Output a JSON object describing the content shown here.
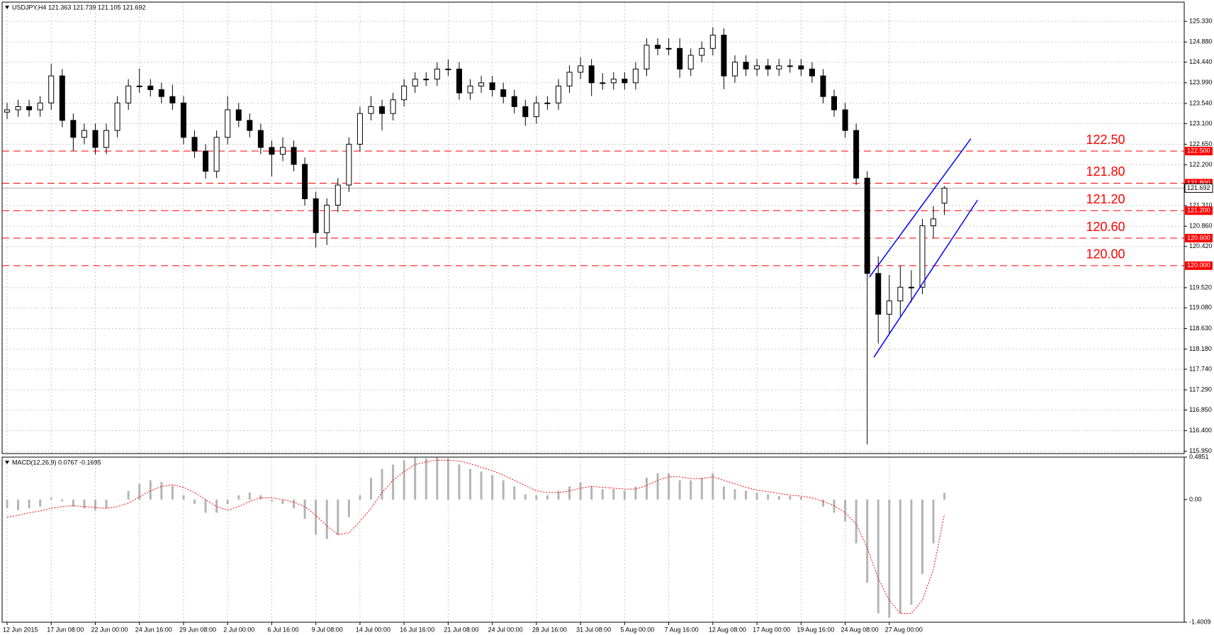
{
  "chart_data": [
    {
      "type": "candlestick",
      "title": "USDJPY,H4  121.363 121.739 121.105 121.692",
      "categories": [
        "12 Jun 2015",
        null,
        null,
        null,
        "17 Jun 08:00",
        null,
        null,
        null,
        "22 Jun 00:00",
        null,
        null,
        null,
        "24 Jun 16:00",
        null,
        null,
        null,
        "29 Jun 08:00",
        null,
        null,
        null,
        "2 Jul 00:00",
        null,
        null,
        null,
        "6 Jul 16:00",
        null,
        null,
        null,
        "9 Jul 08:00",
        null,
        null,
        null,
        "14 Jul 00:00",
        null,
        null,
        null,
        "16 Jul 16:00",
        null,
        null,
        null,
        "21 Jul 08:00",
        null,
        null,
        null,
        "24 Jul 00:00",
        null,
        null,
        null,
        "28 Jul 16:00",
        null,
        null,
        null,
        "31 Jul 08:00",
        null,
        null,
        null,
        "5 Aug 00:00",
        null,
        null,
        null,
        "7 Aug 16:00",
        null,
        null,
        null,
        "12 Aug 08:00",
        null,
        null,
        null,
        "17 Aug 00:00",
        null,
        null,
        null,
        "19 Aug 16:00",
        null,
        null,
        null,
        "24 Aug 08:00",
        null,
        null,
        null,
        "27 Aug 00:00",
        null,
        null,
        null,
        null,
        null
      ],
      "open": [
        123.35,
        123.4,
        123.47,
        123.4,
        123.55,
        124.14,
        123.17,
        122.8,
        122.95,
        122.58,
        122.95,
        123.55,
        123.92,
        123.92,
        123.84,
        123.69,
        123.55,
        122.8,
        122.5,
        122.06,
        122.8,
        123.4,
        123.17,
        122.95,
        122.58,
        122.43,
        122.58,
        122.21,
        121.46,
        120.72,
        121.32,
        121.76,
        122.65,
        123.32,
        123.47,
        123.32,
        123.62,
        123.92,
        124.07,
        124.07,
        124.29,
        124.29,
        123.77,
        123.92,
        123.99,
        123.84,
        123.69,
        123.47,
        123.25,
        123.55,
        123.55,
        123.92,
        124.22,
        124.36,
        123.99,
        123.99,
        124.07,
        123.99,
        124.29,
        124.81,
        124.74,
        124.74,
        124.29,
        124.59,
        124.74,
        125.03,
        124.14,
        124.44,
        124.29,
        124.36,
        124.29,
        124.36,
        124.36,
        124.29,
        124.14,
        123.69,
        123.4,
        122.95,
        121.91,
        119.83,
        118.94,
        119.23,
        119.53,
        119.53,
        120.87,
        121.363
      ],
      "high": [
        123.55,
        123.62,
        123.62,
        123.7,
        124.4,
        124.29,
        123.32,
        123.1,
        123.1,
        123.1,
        123.7,
        124.07,
        124.3,
        124.07,
        123.99,
        123.95,
        123.7,
        122.95,
        122.65,
        122.95,
        123.7,
        123.55,
        123.32,
        123.1,
        122.73,
        122.8,
        122.73,
        122.36,
        121.61,
        121.47,
        121.91,
        122.8,
        123.47,
        123.7,
        123.62,
        123.77,
        124.07,
        124.22,
        124.22,
        124.44,
        124.5,
        124.44,
        124.07,
        124.14,
        124.14,
        123.99,
        123.84,
        123.62,
        123.7,
        123.7,
        124.07,
        124.37,
        124.55,
        124.51,
        124.2,
        124.22,
        124.22,
        124.44,
        124.96,
        124.96,
        124.96,
        124.96,
        124.74,
        124.89,
        125.2,
        125.18,
        124.59,
        124.59,
        124.51,
        124.51,
        124.51,
        124.51,
        124.51,
        124.44,
        124.29,
        123.84,
        123.55,
        123.1,
        122.06,
        120.2,
        119.8,
        120.0,
        119.9,
        121.02,
        121.3,
        121.739
      ],
      "low": [
        123.2,
        123.25,
        123.25,
        123.25,
        123.4,
        123.02,
        122.5,
        122.65,
        122.43,
        122.43,
        122.8,
        123.4,
        123.77,
        123.69,
        123.54,
        123.4,
        122.65,
        122.35,
        121.9,
        121.91,
        122.65,
        123.02,
        122.8,
        122.43,
        121.95,
        122.28,
        122.06,
        121.31,
        120.4,
        120.45,
        121.17,
        121.61,
        122.5,
        123.17,
        122.95,
        123.17,
        123.47,
        123.77,
        123.92,
        123.92,
        124.14,
        123.62,
        123.62,
        123.77,
        123.69,
        123.54,
        123.32,
        123.05,
        123.1,
        123.4,
        123.4,
        123.77,
        124.07,
        123.7,
        123.84,
        123.84,
        123.84,
        123.84,
        124.14,
        124.59,
        124.59,
        124.1,
        124.14,
        124.44,
        124.59,
        123.85,
        123.99,
        124.14,
        124.14,
        124.14,
        124.14,
        124.21,
        124.14,
        123.99,
        123.54,
        123.25,
        122.8,
        121.76,
        116.1,
        118.3,
        118.5,
        118.9,
        119.2,
        119.38,
        120.6,
        121.105
      ],
      "close": [
        123.4,
        123.47,
        123.4,
        123.55,
        124.14,
        123.17,
        122.8,
        122.95,
        122.58,
        122.95,
        123.55,
        123.92,
        123.92,
        123.84,
        123.69,
        123.55,
        122.8,
        122.5,
        122.06,
        122.8,
        123.4,
        123.17,
        122.95,
        122.58,
        122.43,
        122.58,
        122.21,
        121.46,
        120.72,
        121.32,
        121.76,
        122.65,
        123.32,
        123.47,
        123.32,
        123.62,
        123.92,
        124.07,
        124.07,
        124.29,
        124.29,
        123.77,
        123.92,
        123.99,
        123.84,
        123.69,
        123.47,
        123.25,
        123.55,
        123.55,
        123.92,
        124.22,
        124.36,
        123.99,
        123.99,
        124.07,
        123.99,
        124.29,
        124.81,
        124.74,
        124.74,
        124.29,
        124.59,
        124.74,
        125.03,
        124.14,
        124.44,
        124.29,
        124.36,
        124.29,
        124.36,
        124.36,
        124.29,
        124.14,
        123.69,
        123.4,
        122.95,
        121.91,
        119.83,
        118.94,
        119.23,
        119.53,
        119.53,
        120.87,
        121.02,
        121.692
      ],
      "up_color": "#ffffff",
      "down_color": "#000000",
      "edge_color": "#000000",
      "ylim": [
        115.9,
        125.75
      ],
      "yticks": [
        {
          "value": 125.33,
          "label": "125.330"
        },
        {
          "value": 124.88,
          "label": "124.880"
        },
        {
          "value": 124.44,
          "label": "124.440"
        },
        {
          "value": 123.99,
          "label": "123.990"
        },
        {
          "value": 123.54,
          "label": "123.540"
        },
        {
          "value": 123.1,
          "label": "123.100"
        },
        {
          "value": 122.65,
          "label": "122.650"
        },
        {
          "value": 122.2,
          "label": "122.200"
        },
        {
          "value": 121.31,
          "label": "121.310"
        },
        {
          "value": 120.86,
          "label": "120.860"
        },
        {
          "value": 120.42,
          "label": "120.420"
        },
        {
          "value": 119.52,
          "label": "119.520"
        },
        {
          "value": 119.08,
          "label": "119.080"
        },
        {
          "value": 118.63,
          "label": "118.630"
        },
        {
          "value": 118.18,
          "label": "118.180"
        },
        {
          "value": 117.74,
          "label": "117.740"
        },
        {
          "value": 117.29,
          "label": "117.290"
        },
        {
          "value": 116.85,
          "label": "116.850"
        },
        {
          "value": 116.4,
          "label": "116.400"
        },
        {
          "value": 115.95,
          "label": "115.950"
        }
      ],
      "grid": true,
      "levels": [
        {
          "value": 122.5,
          "label": "122.50",
          "tag": "122.500",
          "color": "#ff0000"
        },
        {
          "value": 121.8,
          "label": "121.80",
          "tag": "121.800",
          "color": "#ff0000"
        },
        {
          "value": 121.2,
          "label": "121.20",
          "tag": "121.200",
          "color": "#ff0000"
        },
        {
          "value": 120.6,
          "label": "120.60",
          "tag": "120.600",
          "color": "#ff0000"
        },
        {
          "value": 120.0,
          "label": "120.00",
          "tag": "120.000",
          "color": "#ff0000"
        }
      ],
      "last_price": {
        "value": 121.692,
        "label": "121.692"
      },
      "trendlines": [
        {
          "x": [
            78.2,
            87.4
          ],
          "y": [
            119.75,
            122.77
          ],
          "color": "#0000ff"
        },
        {
          "x": [
            78.6,
            88.0
          ],
          "y": [
            118.0,
            121.43
          ],
          "color": "#0000ff"
        }
      ]
    },
    {
      "type": "macd",
      "title": "MACD(12,26,9) 0.0767 -0.1695",
      "histogram": {
        "color": "#b4b4b4",
        "values": [
          -0.1,
          -0.12,
          -0.1,
          -0.08,
          0.02,
          -0.02,
          -0.08,
          -0.1,
          -0.12,
          -0.1,
          0.0,
          0.1,
          0.18,
          0.22,
          0.2,
          0.16,
          0.05,
          -0.05,
          -0.15,
          -0.15,
          -0.05,
          0.05,
          0.08,
          0.05,
          -0.02,
          -0.05,
          -0.1,
          -0.22,
          -0.4,
          -0.45,
          -0.4,
          -0.2,
          0.05,
          0.25,
          0.35,
          0.4,
          0.45,
          0.48,
          0.47,
          0.48,
          0.47,
          0.4,
          0.35,
          0.32,
          0.28,
          0.22,
          0.15,
          0.06,
          0.05,
          0.05,
          0.1,
          0.15,
          0.2,
          0.15,
          0.12,
          0.12,
          0.1,
          0.15,
          0.25,
          0.3,
          0.3,
          0.22,
          0.22,
          0.25,
          0.3,
          0.15,
          0.12,
          0.1,
          0.08,
          0.06,
          0.04,
          0.04,
          0.03,
          0.0,
          -0.08,
          -0.15,
          -0.25,
          -0.5,
          -0.95,
          -1.3,
          -1.35,
          -1.3,
          -1.2,
          -0.85,
          -0.5,
          0.0767
        ]
      },
      "signal": {
        "color": "#ff0000",
        "values": [
          -0.2,
          -0.18,
          -0.15,
          -0.13,
          -0.1,
          -0.08,
          -0.07,
          -0.08,
          -0.09,
          -0.1,
          -0.08,
          -0.04,
          0.03,
          0.1,
          0.15,
          0.17,
          0.14,
          0.08,
          0.0,
          -0.08,
          -0.12,
          -0.08,
          -0.02,
          0.02,
          0.02,
          0.0,
          -0.03,
          -0.08,
          -0.18,
          -0.3,
          -0.4,
          -0.38,
          -0.25,
          -0.1,
          0.08,
          0.22,
          0.32,
          0.4,
          0.43,
          0.45,
          0.45,
          0.44,
          0.41,
          0.37,
          0.33,
          0.28,
          0.22,
          0.16,
          0.1,
          0.08,
          0.08,
          0.1,
          0.13,
          0.15,
          0.14,
          0.13,
          0.12,
          0.12,
          0.16,
          0.22,
          0.26,
          0.26,
          0.24,
          0.24,
          0.26,
          0.22,
          0.18,
          0.14,
          0.11,
          0.09,
          0.07,
          0.05,
          0.04,
          0.02,
          -0.02,
          -0.07,
          -0.15,
          -0.28,
          -0.55,
          -0.9,
          -1.15,
          -1.3,
          -1.3,
          -1.15,
          -0.8,
          -0.1695
        ]
      },
      "ylim": [
        -1.4009,
        0.4851
      ],
      "yticks": [
        0.4851,
        {
          "value": 0,
          "label": "0.00"
        },
        -1.4009
      ]
    }
  ]
}
